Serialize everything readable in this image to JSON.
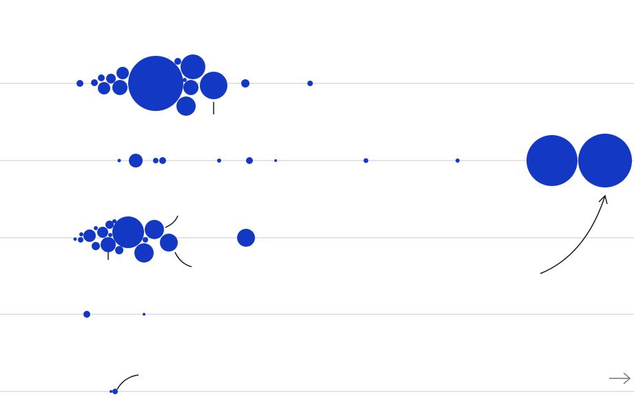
{
  "chart_data": {
    "type": "bubble",
    "color": "#1238c4",
    "xlim": [
      0,
      920
    ],
    "series": [
      {
        "x": [
          116,
          137,
          147,
          151,
          161,
          174,
          178,
          226,
          258,
          270,
          277,
          280,
          310,
          356,
          450,
          268
        ],
        "values": [
          5,
          5,
          5,
          9,
          7,
          11,
          9,
          40,
          5,
          14,
          11,
          18,
          20,
          6,
          4,
          3
        ]
      },
      {
        "x": [
          173,
          197,
          226,
          236,
          318,
          362,
          400,
          531,
          664,
          801,
          878
        ],
        "values": [
          2.5,
          10,
          4,
          5,
          3,
          5,
          2,
          3.5,
          3,
          37,
          39
        ]
      },
      {
        "x": [
          109,
          117,
          118,
          130,
          139,
          139,
          149,
          157,
          159,
          160,
          166,
          173,
          186,
          209,
          211,
          224,
          245,
          357
        ],
        "values": [
          2.5,
          4,
          3,
          9,
          6,
          3,
          8,
          11,
          6,
          3,
          3,
          6,
          23,
          14,
          4,
          14,
          13,
          13
        ]
      },
      {
        "x": [
          126,
          209
        ],
        "values": [
          5,
          2
        ]
      },
      {
        "x": [
          161,
          167
        ],
        "values": [
          2,
          4
        ]
      }
    ]
  }
}
